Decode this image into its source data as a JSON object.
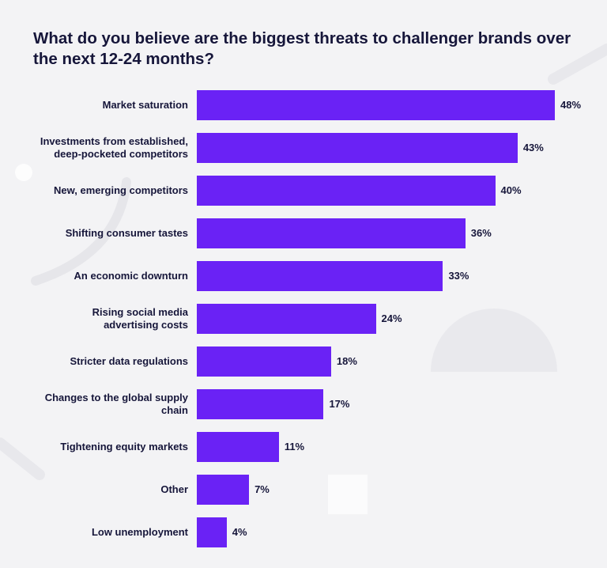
{
  "title": "What do you believe are the biggest threats to challenger brands over the next 12-24 months?",
  "colors": {
    "bar": "#6a22f5",
    "text": "#16163a",
    "background": "#f3f3f5"
  },
  "chart_data": {
    "type": "bar",
    "orientation": "horizontal",
    "title": "What do you believe are the biggest threats to challenger brands over the next 12-24 months?",
    "xlabel": "",
    "ylabel": "",
    "xlim": [
      0,
      48
    ],
    "grid": false,
    "categories": [
      "Market saturation",
      "Investments from established,\ndeep-pocketed competitors",
      "New, emerging competitors",
      "Shifting consumer tastes",
      "An economic downturn",
      "Rising social media\nadvertising costs",
      "Stricter data regulations",
      "Changes to the global supply\nchain",
      "Tightening equity markets",
      "Other",
      "Low unemployment"
    ],
    "values": [
      48,
      43,
      40,
      36,
      33,
      24,
      18,
      17,
      11,
      7,
      4
    ],
    "value_labels": [
      "48%",
      "43%",
      "40%",
      "36%",
      "33%",
      "24%",
      "18%",
      "17%",
      "11%",
      "7%",
      "4%"
    ]
  }
}
